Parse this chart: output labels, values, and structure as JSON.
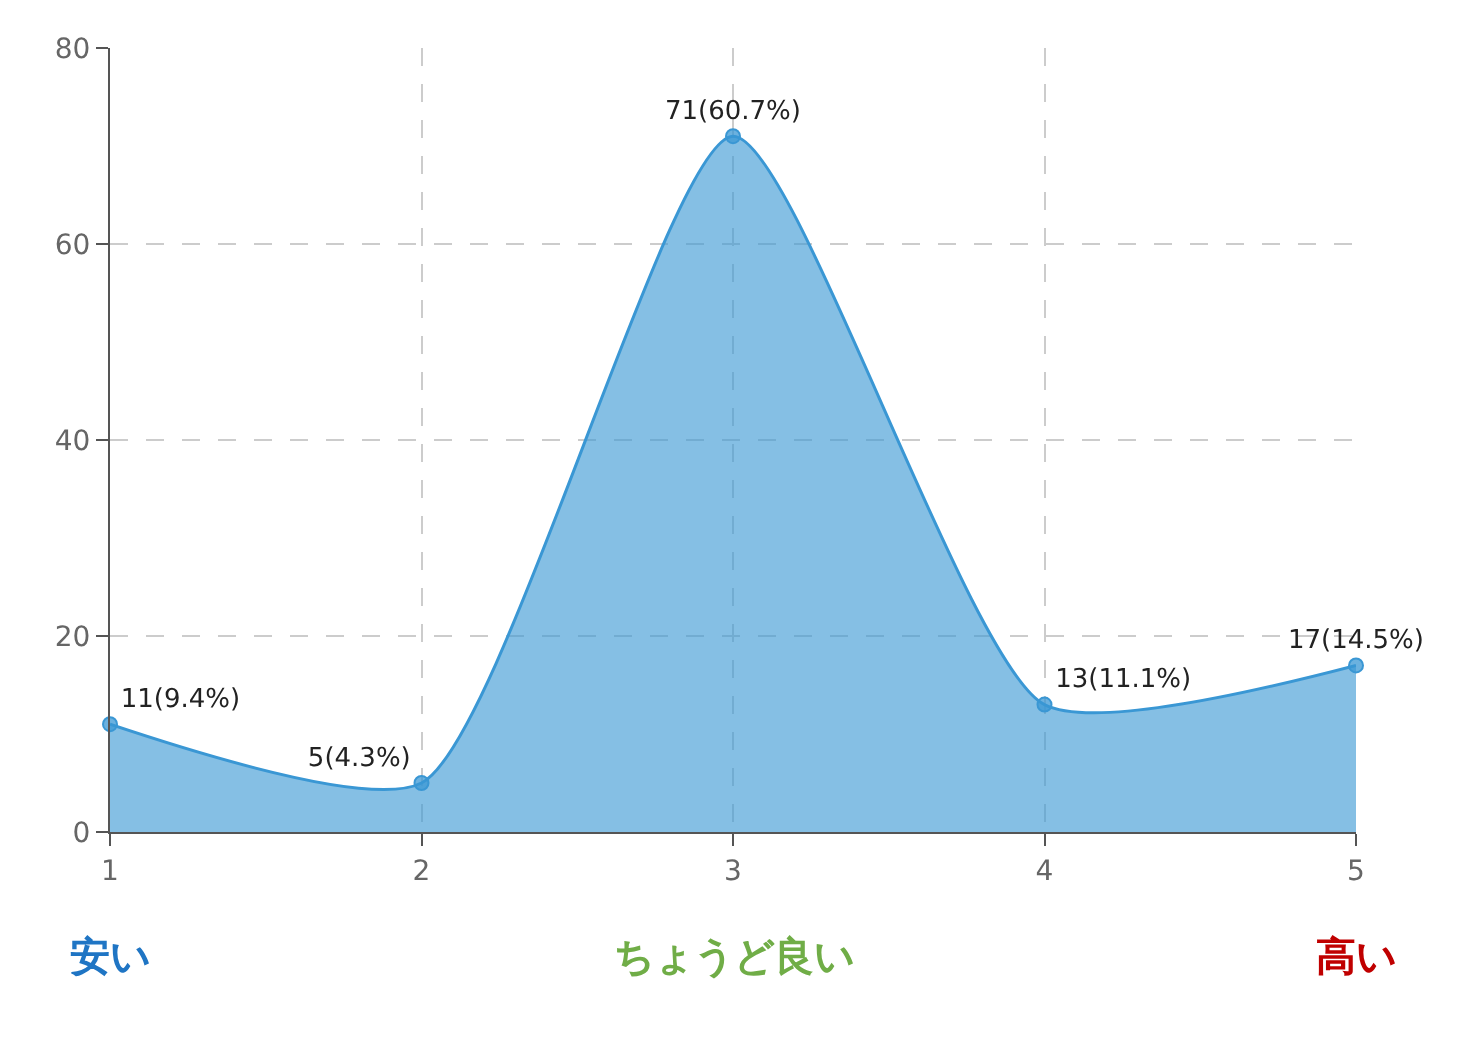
{
  "chart_data": {
    "type": "area",
    "x": [
      1,
      2,
      3,
      4,
      5
    ],
    "values": [
      11,
      5,
      71,
      13,
      17
    ],
    "color": "#3a97d4",
    "value_labels": [
      "11(9.4%)",
      "5(4.3%)",
      "71(60.7%)",
      "13(11.1%)",
      "17(14.5%)"
    ],
    "xlim": [
      1,
      5
    ],
    "ylim": [
      0,
      80
    ],
    "xticks": [
      1,
      2,
      3,
      4,
      5
    ],
    "yticks": [
      0,
      20,
      40,
      60,
      80
    ],
    "grid": true,
    "marker": "circle",
    "line_style": "solid",
    "annotations": [
      "安い",
      "ちょうど良い",
      "高い"
    ]
  }
}
